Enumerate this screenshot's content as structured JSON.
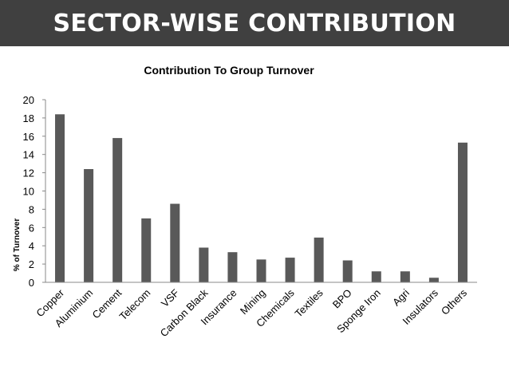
{
  "header": {
    "title": "SECTOR-WISE CONTRIBUTION"
  },
  "chart_data": {
    "type": "bar",
    "title": "Contribution To Group Turnover",
    "xlabel": "",
    "ylabel": "% of Turnover",
    "ylim": [
      0,
      20
    ],
    "yticks": [
      0,
      2,
      4,
      6,
      8,
      10,
      12,
      14,
      16,
      18,
      20
    ],
    "grid": false,
    "legend": "none",
    "bar_color": "#595959",
    "categories": [
      "Copper",
      "Aluminium",
      "Cement",
      "Telecom",
      "VSF",
      "Carbon Black",
      "Insurance",
      "Mining",
      "Chemicals",
      "Textiles",
      "BPO",
      "Sponge Iron",
      "Agri",
      "Insulators",
      "Others"
    ],
    "values": [
      18.4,
      12.4,
      15.8,
      7.0,
      8.6,
      3.8,
      3.3,
      2.5,
      2.7,
      4.9,
      2.4,
      1.2,
      1.2,
      0.5,
      15.3
    ]
  }
}
